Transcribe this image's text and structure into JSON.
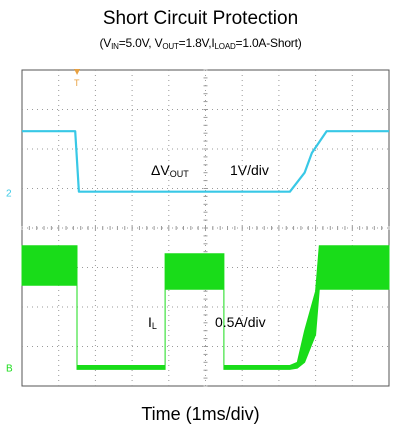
{
  "chart_data": {
    "type": "line",
    "title": "Short Circuit Protection",
    "subtitle_parts": [
      "(V",
      "IN",
      "=5.0V, V",
      "OUT",
      "=1.8V,I",
      "LOAD",
      "=1.0A-Short)"
    ],
    "xlabel": "Time (1ms/div)",
    "x_range_div": [
      0,
      10
    ],
    "y_range_div": [
      0,
      8
    ],
    "grid": true,
    "colors": {
      "vout": "#38c8e6",
      "il": "#19dc19",
      "grid": "#9a9a9a",
      "frame": "#555555"
    },
    "trigger_marker": "T",
    "series": [
      {
        "name": "ΔVOUT",
        "label_main": "ΔV",
        "label_sub": "OUT",
        "scale": "1V/div",
        "channel_marker": "2",
        "x": [
          0,
          1.45,
          1.55,
          7.3,
          7.7,
          7.9,
          8.3,
          10
        ],
        "y": [
          6.45,
          6.45,
          4.92,
          4.92,
          5.4,
          5.9,
          6.45,
          6.45
        ]
      },
      {
        "name": "IL",
        "label_main": "I",
        "label_sub": "L",
        "scale": "0.5A/div",
        "channel_marker": "B",
        "envelope_x": [
          0,
          1.5,
          1.5,
          3.9,
          3.9,
          5.5,
          5.5,
          7.3,
          7.5,
          7.7,
          8.0,
          8.1,
          10
        ],
        "envelope_top": [
          3.55,
          3.55,
          0.52,
          0.52,
          3.35,
          3.35,
          0.52,
          0.52,
          0.6,
          1.4,
          2.4,
          3.55,
          3.55
        ],
        "envelope_bottom": [
          2.55,
          2.55,
          0.42,
          0.42,
          2.45,
          2.45,
          0.42,
          0.42,
          0.45,
          0.6,
          1.3,
          2.45,
          2.45
        ],
        "baseline_y": 0.47
      }
    ]
  }
}
